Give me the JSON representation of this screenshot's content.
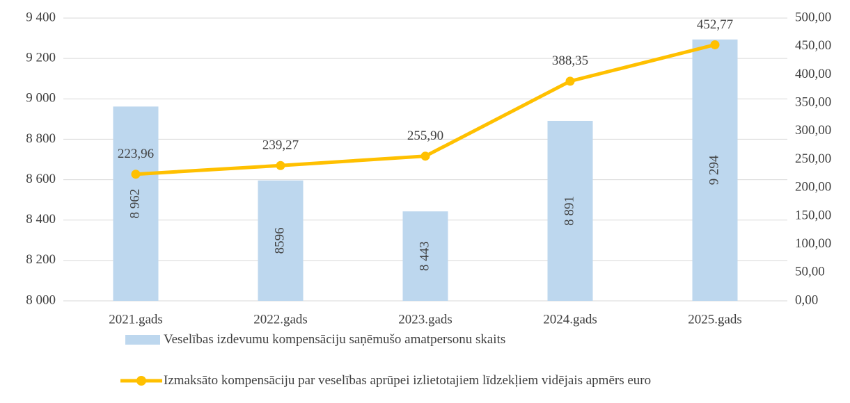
{
  "chart_data": {
    "type": "bar_line",
    "categories": [
      "2021.gads",
      "2022.gads",
      "2023.gads",
      "2024.gads",
      "2025.gads"
    ],
    "series": [
      {
        "name": "Veselības izdevumu kompensāciju saņēmušo amatpersonu skaits",
        "type": "bar",
        "color": "#bdd7ee",
        "values": [
          8962,
          8596,
          8443,
          8891,
          9294
        ],
        "value_labels": [
          "8 962",
          "8596",
          "8 443",
          "8 891",
          "9 294"
        ]
      },
      {
        "name": "Izmaksāto kompensāciju par veselības aprūpei  izlietotajiem līdzekļiem vidējais apmērs euro",
        "type": "line",
        "axis": "y2",
        "color": "#ffc000",
        "values": [
          223.96,
          239.27,
          255.9,
          388.35,
          452.77
        ],
        "value_labels": [
          "223,96",
          "239,27",
          "255,90",
          "388,35",
          "452,77"
        ]
      }
    ],
    "ylim": [
      8000,
      9400
    ],
    "yticks": [
      {
        "value": 8000,
        "label": "8 000"
      },
      {
        "value": 8200,
        "label": "8 200"
      },
      {
        "value": 8400,
        "label": "8 400"
      },
      {
        "value": 8600,
        "label": "8 600"
      },
      {
        "value": 8800,
        "label": "8 800"
      },
      {
        "value": 9000,
        "label": "9 000"
      },
      {
        "value": 9200,
        "label": "9 200"
      },
      {
        "value": 9400,
        "label": "9 400"
      }
    ],
    "y2lim": [
      0,
      500
    ],
    "y2ticks": [
      {
        "value": 0,
        "label": "0,00"
      },
      {
        "value": 50,
        "label": "50,00"
      },
      {
        "value": 100,
        "label": "100,00"
      },
      {
        "value": 150,
        "label": "150,00"
      },
      {
        "value": 200,
        "label": "200,00"
      },
      {
        "value": 250,
        "label": "250,00"
      },
      {
        "value": 300,
        "label": "300,00"
      },
      {
        "value": 350,
        "label": "350,00"
      },
      {
        "value": 400,
        "label": "400,00"
      },
      {
        "value": 450,
        "label": "450,00"
      },
      {
        "value": 500,
        "label": "500,00"
      }
    ],
    "grid": true
  }
}
